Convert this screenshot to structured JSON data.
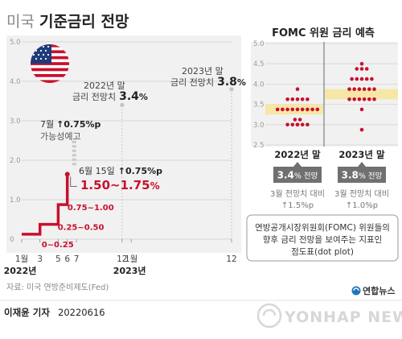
{
  "header": {
    "title_prefix": "미국",
    "title_main": "기준금리 전망"
  },
  "colors": {
    "policy_line": "#c8102e",
    "dot": "#c8102e",
    "highlight": "#f6e7a6",
    "panel_bg": "#f1f1f1",
    "badge_bg": "#707070",
    "dashed": "#c8c8c8",
    "text_dark": "#333333",
    "text_mid": "#666666",
    "text_light": "#999999"
  },
  "chart_data": [
    {
      "type": "line",
      "title": "",
      "ylim": [
        0,
        5.0
      ],
      "y_ticks": [
        "0",
        "1.0",
        "2.0",
        "3.0",
        "4.0",
        "5.0"
      ],
      "x_tick_labels": [
        {
          "label": "1월",
          "m": 1
        },
        {
          "label": "3",
          "m": 3
        },
        {
          "label": "5",
          "m": 5
        },
        {
          "label": "6",
          "m": 6
        },
        {
          "label": "7",
          "m": 7
        },
        {
          "label": "12",
          "m": 12
        },
        {
          "label": "1월",
          "m": 13
        },
        {
          "label": "12",
          "m": 24
        }
      ],
      "x_year_labels": [
        {
          "label": "2022년",
          "m": 1
        },
        {
          "label": "2023년",
          "m": 13
        }
      ],
      "series": [
        {
          "points": [
            [
              1,
              0.125
            ],
            [
              3,
              0.125
            ],
            [
              3,
              0.375
            ],
            [
              5,
              0.375
            ],
            [
              5,
              0.875
            ],
            [
              6,
              0.875
            ],
            [
              6,
              1.625
            ]
          ]
        }
      ],
      "projections": [
        {
          "from": [
            6.75,
            1.75
          ],
          "to": [
            6.75,
            2.5
          ],
          "style": "dashed-gray"
        },
        {
          "from": [
            12,
            0
          ],
          "to": [
            12,
            3.4
          ],
          "style": "dotted"
        },
        {
          "from": [
            24,
            0
          ],
          "to": [
            24,
            3.8
          ],
          "style": "dotted"
        }
      ],
      "range_labels": [
        {
          "text": "0~0.25",
          "m": 3,
          "y": 0.125
        },
        {
          "text": "0.25~0.50",
          "m": 4.5,
          "y": 0.375
        },
        {
          "text": "0.75~1.00",
          "m": 5.4,
          "y": 0.875
        }
      ],
      "annotations": {
        "july_line1_prefix": "7월",
        "july_line1_value": "0.75%p",
        "july_line2": "가능성예고",
        "june_prefix": "6월 15일",
        "june_value": "0.75%p",
        "june_range": "1.50~1.75",
        "june_unit": "%",
        "end2022_line1": "2022년 말",
        "end2022_line2_prefix": "금리 전망치",
        "end2022_line2_value": "3.4",
        "end2022_line2_unit": "%",
        "end2023_line1": "2023년 말",
        "end2023_line2_prefix": "금리 전망치",
        "end2023_line2_value": "3.8",
        "end2023_line2_unit": "%",
        "arrow": "↑"
      }
    },
    {
      "type": "scatter",
      "title": "FOMC 위원 금리 예측",
      "ylim": [
        2.5,
        5.0
      ],
      "y_ticks": [
        "2.5",
        "3.0",
        "3.5",
        "4.0",
        "4.5",
        "5.0"
      ],
      "highlight_bands": [
        {
          "group": "2022년 말",
          "y": [
            3.25,
            3.5
          ]
        },
        {
          "group": "2023년 말",
          "y": [
            3.625,
            3.875
          ]
        }
      ],
      "groups": [
        {
          "label": "2022년 말",
          "rows": [
            {
              "y": 3.875,
              "count": 1
            },
            {
              "y": 3.625,
              "count": 5
            },
            {
              "y": 3.375,
              "count": 9
            },
            {
              "y": 3.125,
              "count": 2
            },
            {
              "y": 3.0,
              "count": 1
            },
            {
              "y": 3.0,
              "count": 5
            }
          ],
          "badge_value": "3.4",
          "badge_unit": "% 전망",
          "compare_line1": "3월 전망치 대비",
          "compare_line2": "↑1.5%p"
        },
        {
          "label": "2023년 말",
          "rows": [
            {
              "y": 4.5,
              "count": 1
            },
            {
              "y": 4.375,
              "count": 3
            },
            {
              "y": 4.125,
              "count": 5
            },
            {
              "y": 3.875,
              "count": 6
            },
            {
              "y": 3.625,
              "count": 6
            },
            {
              "y": 3.375,
              "count": 1
            },
            {
              "y": 2.875,
              "count": 1
            }
          ],
          "badge_value": "3.8",
          "badge_unit": "% 전망",
          "compare_line1": "3월 전망치 대비",
          "compare_line2": "↑1.0%p"
        }
      ]
    }
  ],
  "info_box": {
    "lines": [
      "연방공개시장위원회(FOMC) 위원들의",
      "향후 금리 전망을 보여주는 지표인",
      "점도표(dot plot)"
    ]
  },
  "footer": {
    "source": "자료: 미국 연방준비제도(Fed)",
    "brand": "연합뉴스",
    "byline_name": "이재윤 기자",
    "byline_date": "20220616",
    "watermark": "YONHAP NEWS"
  }
}
